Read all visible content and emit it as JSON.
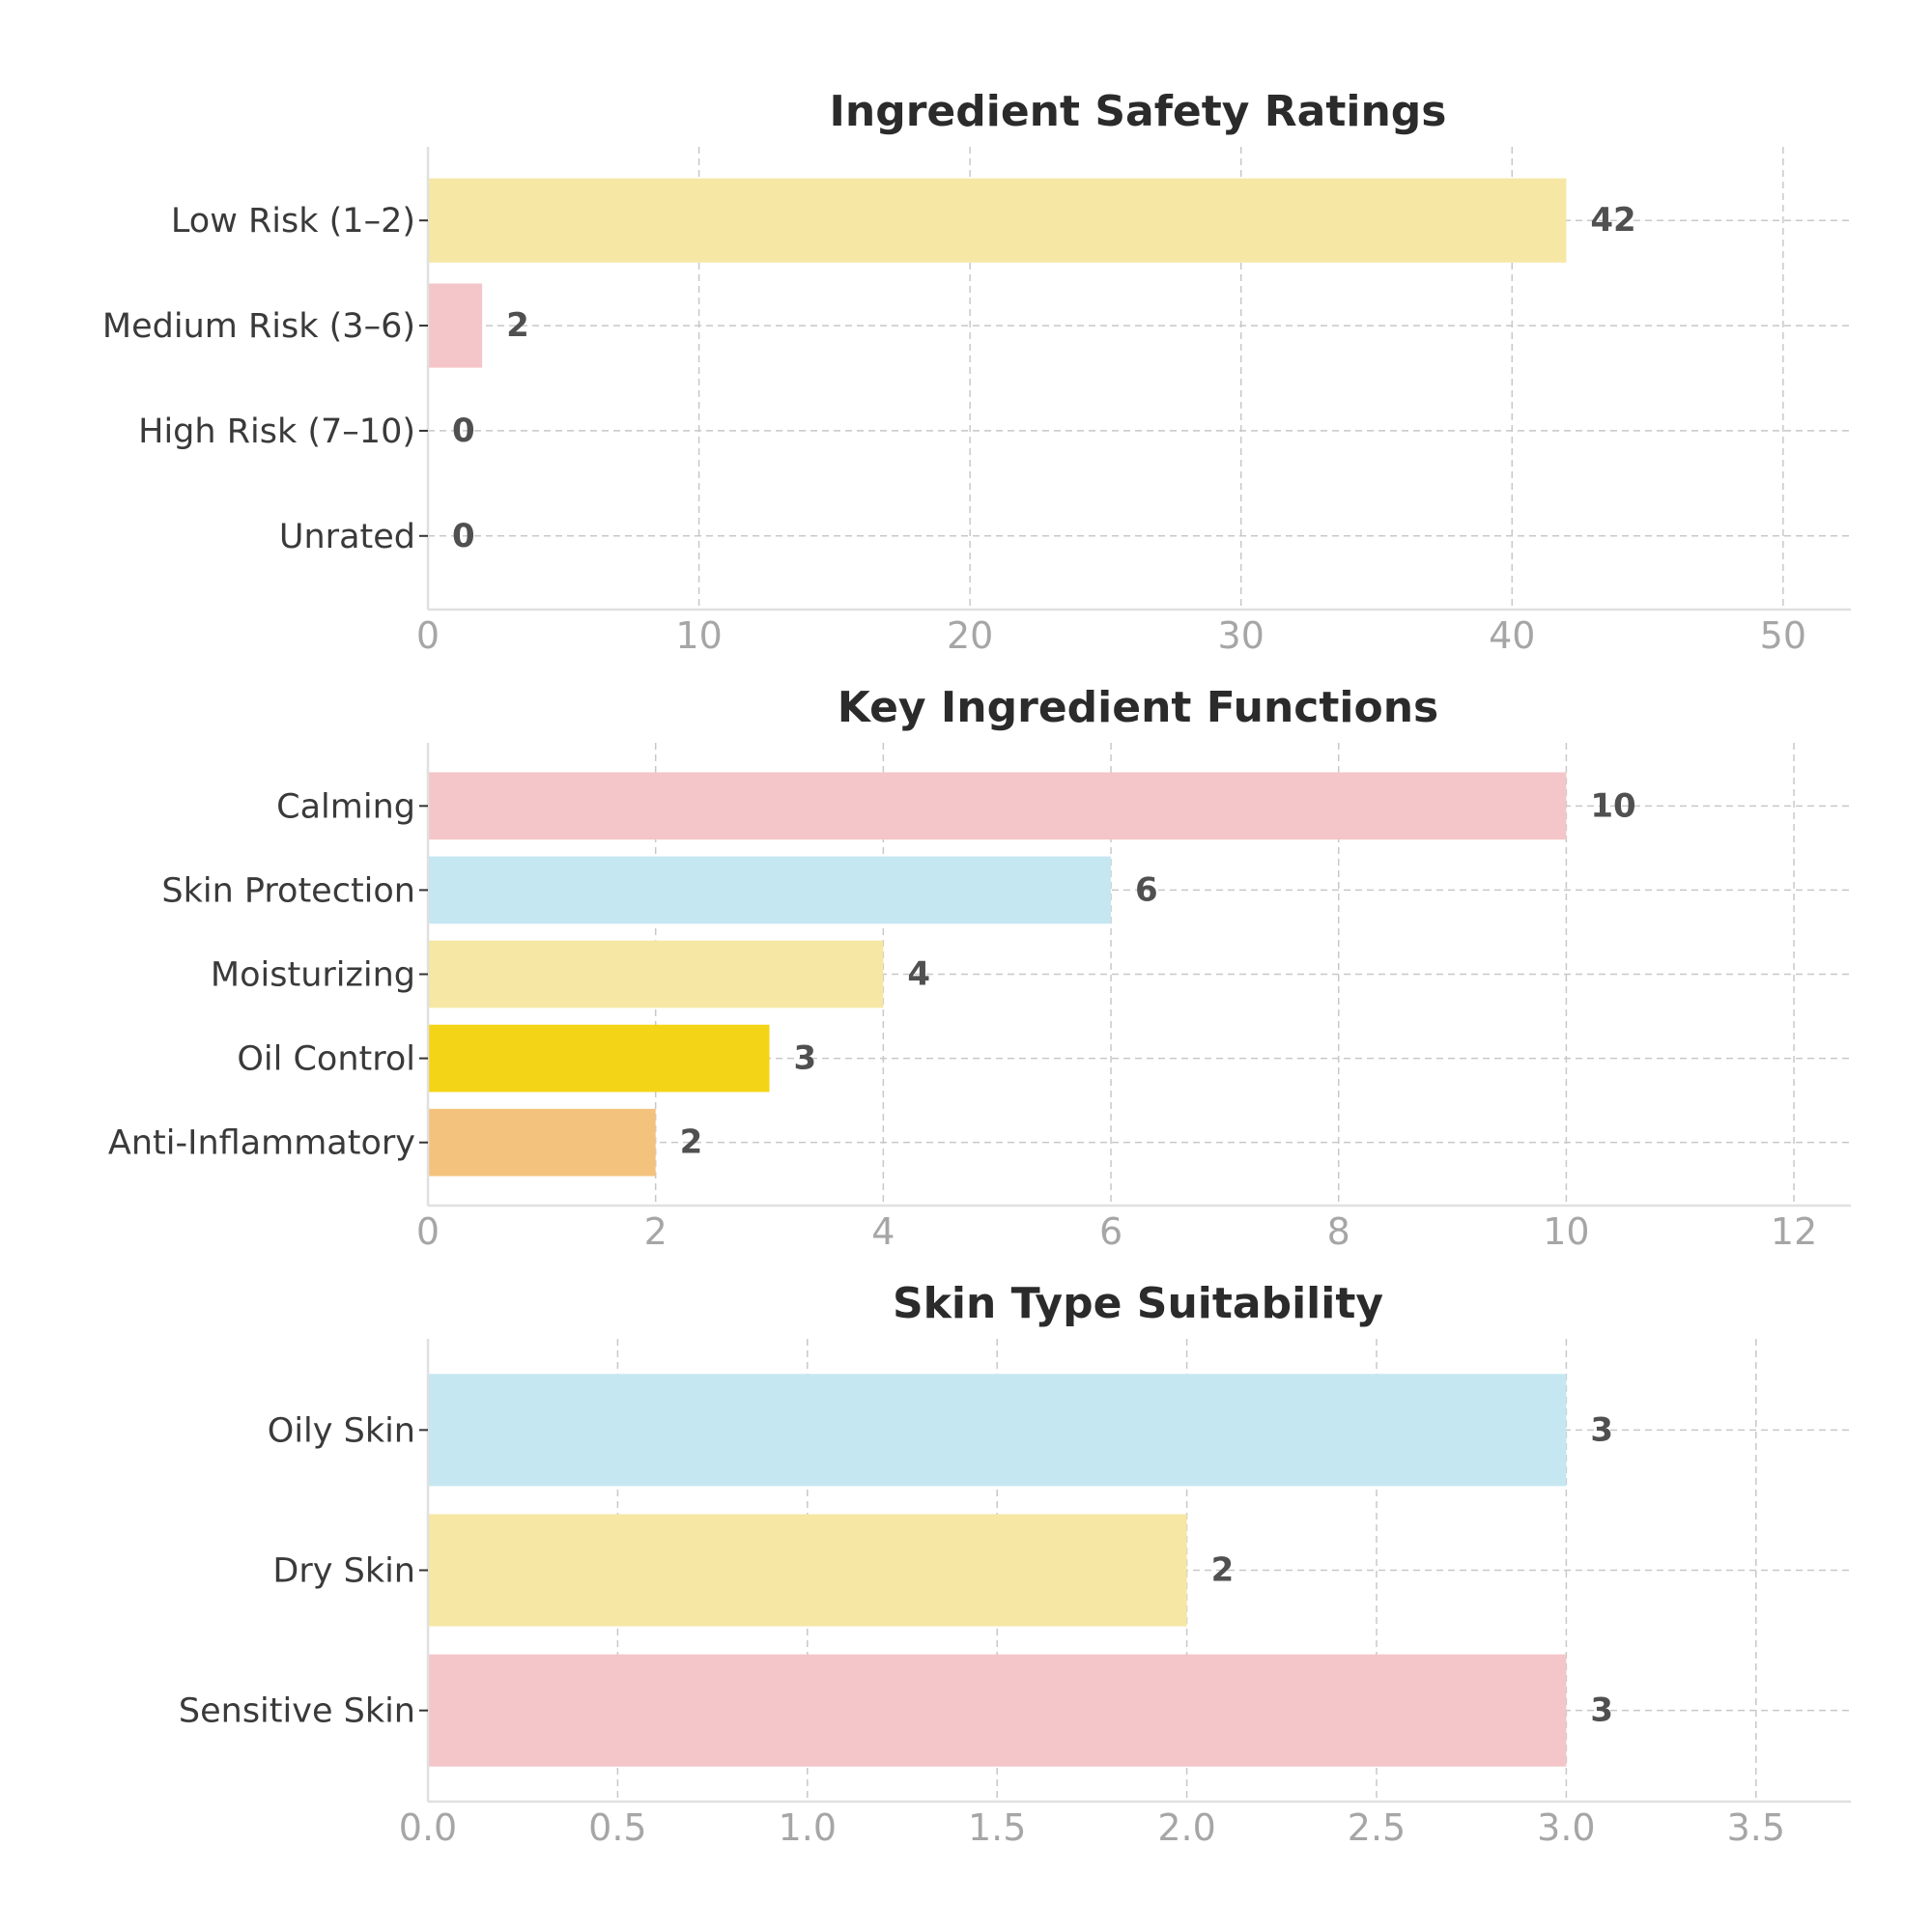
{
  "chart_data": [
    {
      "type": "bar",
      "orientation": "horizontal",
      "title": "Ingredient Safety Ratings",
      "categories": [
        "Low Risk (1–2)",
        "Medium Risk (3–6)",
        "High Risk (7–10)",
        "Unrated"
      ],
      "values": [
        42,
        2,
        0,
        0
      ],
      "value_labels": [
        "42",
        "2",
        "0",
        "0"
      ],
      "colors": [
        "#f6e7a5",
        "#f4c5c9",
        "#f4c5c9",
        "#c5e7f2"
      ],
      "xlim": [
        0,
        52.5
      ],
      "xticks": [
        0,
        10,
        20,
        30,
        40,
        50
      ],
      "xtick_labels": [
        "0",
        "10",
        "20",
        "30",
        "40",
        "50"
      ],
      "grid": true
    },
    {
      "type": "bar",
      "orientation": "horizontal",
      "title": "Key Ingredient Functions",
      "categories": [
        "Calming",
        "Skin Protection",
        "Moisturizing",
        "Oil Control",
        "Anti-Inflammatory"
      ],
      "values": [
        10,
        6,
        4,
        3,
        2
      ],
      "value_labels": [
        "10",
        "6",
        "4",
        "3",
        "2"
      ],
      "colors": [
        "#f4c5c9",
        "#c5e7f2",
        "#f6e7a5",
        "#f4d416",
        "#f3c27d"
      ],
      "xlim": [
        0,
        12.5
      ],
      "xticks": [
        0,
        2,
        4,
        6,
        8,
        10,
        12
      ],
      "xtick_labels": [
        "0",
        "2",
        "4",
        "6",
        "8",
        "10",
        "12"
      ],
      "grid": true
    },
    {
      "type": "bar",
      "orientation": "horizontal",
      "title": "Skin Type Suitability",
      "categories": [
        "Oily Skin",
        "Dry Skin",
        "Sensitive Skin"
      ],
      "values": [
        3,
        2,
        3
      ],
      "value_labels": [
        "3",
        "2",
        "3"
      ],
      "colors": [
        "#c5e7f2",
        "#f6e7a5",
        "#f4c5c9"
      ],
      "xlim": [
        0,
        3.75
      ],
      "xticks": [
        0,
        0.5,
        1,
        1.5,
        2,
        2.5,
        3,
        3.5
      ],
      "xtick_labels": [
        "0.0",
        "0.5",
        "1.0",
        "1.5",
        "2.0",
        "2.5",
        "3.0",
        "3.5"
      ],
      "grid": true
    }
  ]
}
